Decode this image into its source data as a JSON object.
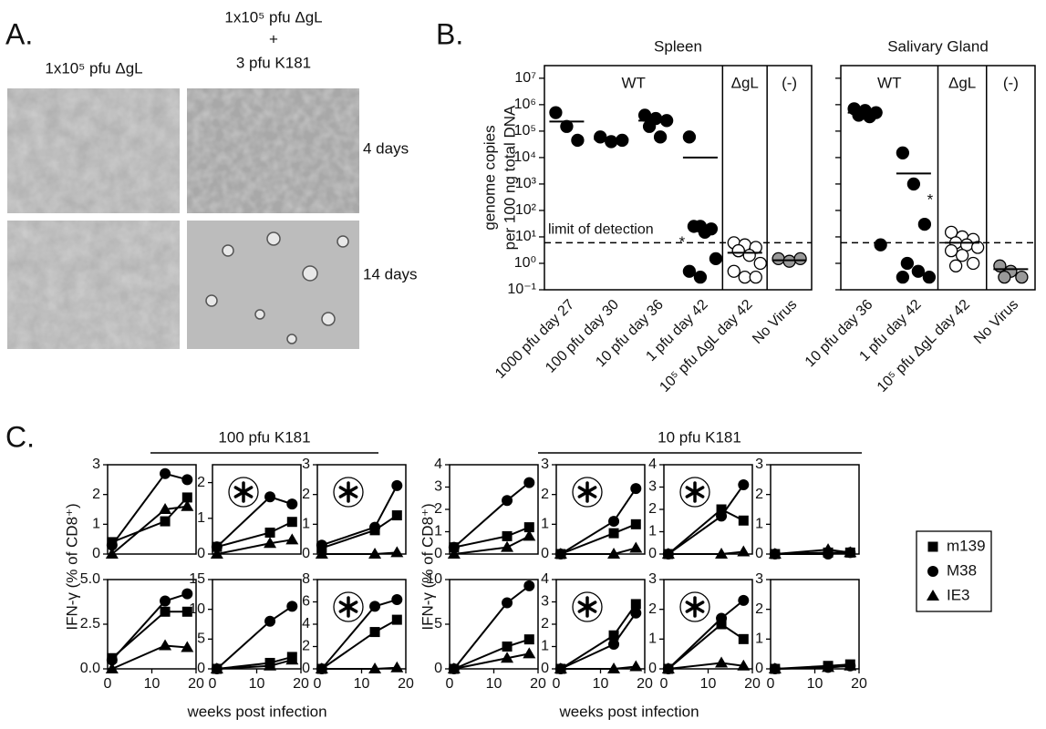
{
  "panel_a": {
    "label": "A.",
    "columns": [
      "1x10⁵ pfu ΔgL",
      [
        "1x10⁵ pfu ΔgL",
        "+",
        "3 pfu K181"
      ]
    ],
    "rows": [
      "4 days",
      "14 days"
    ]
  },
  "panel_b": {
    "label": "B.",
    "y_label": [
      "genome copies",
      "per 100 ng total DNA"
    ]
  },
  "panel_c": {
    "label": "C.",
    "color": "#000000",
    "groups": [
      {
        "title": "100 pfu K181",
        "x_label": "weeks post infection",
        "y_label": "IFN-γ (% of CD8⁺)"
      },
      {
        "title": "10 pfu K181",
        "x_label": "weeks post infection",
        "y_label": "IFN-γ (% of CD8⁺)"
      }
    ],
    "legend": [
      {
        "name": "m139",
        "marker": "square"
      },
      {
        "name": "M38",
        "marker": "circle"
      },
      {
        "name": "IE3",
        "marker": "triangle"
      }
    ]
  },
  "chart_data": [
    {
      "type": "dot",
      "title": "Spleen",
      "log_y": true,
      "ylim": [
        0.1,
        30000000
      ],
      "yticks": [
        {
          "value": 0.1,
          "label": "10⁻¹"
        },
        {
          "value": 1,
          "label": "10⁰"
        },
        {
          "value": 10,
          "label": "10¹"
        },
        {
          "value": 100,
          "label": "10²"
        },
        {
          "value": 1000,
          "label": "10³"
        },
        {
          "value": 10000,
          "label": "10⁴"
        },
        {
          "value": 100000,
          "label": "10⁵"
        },
        {
          "value": 1000000,
          "label": "10⁶"
        },
        {
          "value": 10000000,
          "label": "10⁷"
        }
      ],
      "detection_limit": {
        "label": "limit of detection",
        "value": 6
      },
      "sections": [
        {
          "label": "WT",
          "groups": [
            {
              "category": "1000 pfu day 27",
              "values": [
                500000,
                150000,
                45000
              ],
              "mean": 230000,
              "color": "#000000"
            },
            {
              "category": "100 pfu day 30",
              "values": [
                60000,
                40000,
                45000
              ],
              "mean": 50000,
              "color": "#000000"
            },
            {
              "category": "10 pfu day 36",
              "values": [
                400000,
                300000,
                250000,
                150000,
                60000
              ],
              "mean": 250000,
              "color": "#000000"
            },
            {
              "category": "1 pfu day 42",
              "values": [
                60000,
                25,
                20,
                25,
                15,
                1.5,
                0.5,
                0.3
              ],
              "mean": 10000,
              "color": "#000000",
              "note": "*"
            }
          ]
        },
        {
          "label": "ΔgL",
          "groups": [
            {
              "category": "10⁵ pfu ΔgL day 42",
              "values": [
                6,
                5,
                4,
                3,
                2,
                1,
                0.5,
                0.3,
                0.3,
                3
              ],
              "mean": 2.5,
              "color": "#ffffff"
            }
          ]
        },
        {
          "label": "(-)",
          "groups": [
            {
              "category": "No Virus",
              "values": [
                1.5,
                1.2,
                1.5
              ],
              "mean": 1.3,
              "color": "#999999"
            }
          ]
        }
      ]
    },
    {
      "type": "dot",
      "title": "Salivary Gland",
      "log_y": true,
      "ylim": [
        0.1,
        30000000
      ],
      "yticks": [
        0.1,
        1,
        10,
        100,
        1000,
        10000,
        100000,
        1000000,
        10000000
      ],
      "tick_labels": false,
      "detection_limit": {
        "value": 6
      },
      "sections": [
        {
          "label": "WT",
          "groups": [
            {
              "category": "10 pfu day 36",
              "values": [
                700000,
                600000,
                500000,
                400000,
                350000,
                5
              ],
              "mean": 500000,
              "color": "#000000"
            },
            {
              "category": "1 pfu day 42",
              "values": [
                15000,
                1000,
                30,
                1,
                0.5,
                0.3,
                0.3
              ],
              "mean": 2500,
              "color": "#000000",
              "note": "*"
            }
          ]
        },
        {
          "label": "ΔgL",
          "groups": [
            {
              "category": "10⁵ pfu ΔgL day 42",
              "values": [
                15,
                10,
                8,
                6,
                5,
                4,
                3,
                2,
                1,
                0.8
              ],
              "mean": 6,
              "color": "#ffffff"
            }
          ]
        },
        {
          "label": "(-)",
          "groups": [
            {
              "category": "No Virus",
              "values": [
                0.8,
                0.5,
                0.3,
                0.3
              ],
              "mean": 0.6,
              "color": "#999999"
            }
          ]
        }
      ]
    },
    {
      "type": "line",
      "x": [
        1,
        13,
        18
      ],
      "xlim": [
        0,
        20
      ],
      "ylim": [
        0,
        3
      ],
      "yticks": [
        0,
        1,
        2,
        3
      ],
      "star": false,
      "series": [
        {
          "marker": "square",
          "values": [
            0.4,
            1.1,
            1.9
          ]
        },
        {
          "marker": "circle",
          "values": [
            0.3,
            2.7,
            2.5
          ]
        },
        {
          "marker": "triangle",
          "values": [
            0,
            1.5,
            1.6
          ]
        }
      ]
    },
    {
      "type": "line",
      "x": [
        1,
        13,
        18
      ],
      "xlim": [
        0,
        20
      ],
      "ylim": [
        0,
        2.5
      ],
      "yticks": [
        0,
        1,
        2
      ],
      "star": true,
      "series": [
        {
          "marker": "square",
          "values": [
            0.2,
            0.6,
            0.9
          ]
        },
        {
          "marker": "circle",
          "values": [
            0.2,
            1.6,
            1.4
          ]
        },
        {
          "marker": "triangle",
          "values": [
            0,
            0.3,
            0.4
          ]
        }
      ]
    },
    {
      "type": "line",
      "x": [
        1,
        13,
        18
      ],
      "xlim": [
        0,
        20
      ],
      "ylim": [
        0,
        3
      ],
      "yticks": [
        0,
        1,
        2,
        3
      ],
      "star": true,
      "series": [
        {
          "marker": "square",
          "values": [
            0.2,
            0.8,
            1.3
          ]
        },
        {
          "marker": "circle",
          "values": [
            0.3,
            0.9,
            2.3
          ]
        },
        {
          "marker": "triangle",
          "values": [
            0,
            0,
            0.05
          ]
        }
      ]
    },
    {
      "type": "line",
      "x": [
        1,
        13,
        18
      ],
      "xlim": [
        0,
        20
      ],
      "xticks": [
        0,
        10,
        20
      ],
      "ylim": [
        0,
        5
      ],
      "yticks": [
        {
          "value": 0,
          "label": "0.0"
        },
        {
          "value": 2.5,
          "label": "2.5"
        },
        {
          "value": 5,
          "label": "5.0"
        }
      ],
      "star": false,
      "series": [
        {
          "marker": "square",
          "values": [
            0.6,
            3.2,
            3.2
          ]
        },
        {
          "marker": "circle",
          "values": [
            0.5,
            3.8,
            4.2
          ]
        },
        {
          "marker": "triangle",
          "values": [
            0,
            1.3,
            1.2
          ]
        }
      ]
    },
    {
      "type": "line",
      "x": [
        1,
        13,
        18
      ],
      "xlim": [
        0,
        20
      ],
      "xticks": [
        0,
        10,
        20
      ],
      "ylim": [
        0,
        15
      ],
      "yticks": [
        0,
        5,
        10,
        15
      ],
      "star": false,
      "series": [
        {
          "marker": "square",
          "values": [
            0,
            1,
            2
          ]
        },
        {
          "marker": "circle",
          "values": [
            0,
            8,
            10.5
          ]
        },
        {
          "marker": "triangle",
          "values": [
            0,
            0.5,
            1.5
          ]
        }
      ]
    },
    {
      "type": "line",
      "x": [
        1,
        13,
        18
      ],
      "xlim": [
        0,
        20
      ],
      "xticks": [
        0,
        10,
        20
      ],
      "ylim": [
        0,
        8
      ],
      "yticks": [
        0,
        2,
        4,
        6,
        8
      ],
      "star": true,
      "series": [
        {
          "marker": "square",
          "values": [
            0,
            3.3,
            4.4
          ]
        },
        {
          "marker": "circle",
          "values": [
            0,
            5.6,
            6.2
          ]
        },
        {
          "marker": "triangle",
          "values": [
            0,
            0,
            0.1
          ]
        }
      ]
    },
    {
      "type": "line",
      "x": [
        1,
        13,
        18
      ],
      "xlim": [
        0,
        20
      ],
      "ylim": [
        0,
        4
      ],
      "yticks": [
        0,
        1,
        2,
        3,
        4
      ],
      "star": false,
      "series": [
        {
          "marker": "square",
          "values": [
            0.3,
            0.8,
            1.2
          ]
        },
        {
          "marker": "circle",
          "values": [
            0.3,
            2.4,
            3.2
          ]
        },
        {
          "marker": "triangle",
          "values": [
            0,
            0.3,
            0.8
          ]
        }
      ]
    },
    {
      "type": "line",
      "x": [
        1,
        13,
        18
      ],
      "xlim": [
        0,
        20
      ],
      "ylim": [
        0,
        3
      ],
      "yticks": [
        0,
        1,
        2,
        3
      ],
      "star": true,
      "series": [
        {
          "marker": "square",
          "values": [
            0,
            0.7,
            1
          ]
        },
        {
          "marker": "circle",
          "values": [
            0,
            1.1,
            2.2
          ]
        },
        {
          "marker": "triangle",
          "values": [
            0,
            0,
            0.2
          ]
        }
      ]
    },
    {
      "type": "line",
      "x": [
        1,
        13,
        18
      ],
      "xlim": [
        0,
        20
      ],
      "ylim": [
        0,
        4
      ],
      "yticks": [
        0,
        1,
        2,
        3,
        4
      ],
      "star": true,
      "series": [
        {
          "marker": "square",
          "values": [
            0,
            2,
            1.5
          ]
        },
        {
          "marker": "circle",
          "values": [
            0,
            1.7,
            3.1
          ]
        },
        {
          "marker": "triangle",
          "values": [
            0,
            0,
            0.1
          ]
        }
      ]
    },
    {
      "type": "line",
      "x": [
        1,
        13,
        18
      ],
      "xlim": [
        0,
        20
      ],
      "ylim": [
        0,
        3
      ],
      "yticks": [
        0,
        1,
        2,
        3
      ],
      "star": false,
      "series": [
        {
          "marker": "square",
          "values": [
            0,
            0.05,
            0.05
          ]
        },
        {
          "marker": "circle",
          "values": [
            0,
            0,
            0.05
          ]
        },
        {
          "marker": "triangle",
          "values": [
            0,
            0.15,
            0.05
          ]
        }
      ]
    },
    {
      "type": "line",
      "x": [
        1,
        13,
        18
      ],
      "xlim": [
        0,
        20
      ],
      "xticks": [
        0,
        10,
        20
      ],
      "ylim": [
        0,
        10
      ],
      "yticks": [
        0,
        5,
        10
      ],
      "star": false,
      "series": [
        {
          "marker": "square",
          "values": [
            0,
            2.5,
            3.3
          ]
        },
        {
          "marker": "circle",
          "values": [
            0,
            7.4,
            9.3
          ]
        },
        {
          "marker": "triangle",
          "values": [
            0,
            1.2,
            1.7
          ]
        }
      ]
    },
    {
      "type": "line",
      "x": [
        1,
        13,
        18
      ],
      "xlim": [
        0,
        20
      ],
      "xticks": [
        0,
        10,
        20
      ],
      "ylim": [
        0,
        4
      ],
      "yticks": [
        0,
        1,
        2,
        3,
        4
      ],
      "star": true,
      "series": [
        {
          "marker": "square",
          "values": [
            0,
            1.5,
            2.9
          ]
        },
        {
          "marker": "circle",
          "values": [
            0,
            1.1,
            2.5
          ]
        },
        {
          "marker": "triangle",
          "values": [
            0,
            0,
            0.1
          ]
        }
      ]
    },
    {
      "type": "line",
      "x": [
        1,
        13,
        18
      ],
      "xlim": [
        0,
        20
      ],
      "xticks": [
        0,
        10,
        20
      ],
      "ylim": [
        0,
        3
      ],
      "yticks": [
        0,
        1,
        2,
        3
      ],
      "star": true,
      "series": [
        {
          "marker": "square",
          "values": [
            0,
            1.5,
            1
          ]
        },
        {
          "marker": "circle",
          "values": [
            0,
            1.7,
            2.3
          ]
        },
        {
          "marker": "triangle",
          "values": [
            0,
            0.2,
            0.1
          ]
        }
      ]
    },
    {
      "type": "line",
      "x": [
        1,
        13,
        18
      ],
      "xlim": [
        0,
        20
      ],
      "xticks": [
        0,
        10,
        20
      ],
      "ylim": [
        0,
        3
      ],
      "yticks": [
        0,
        1,
        2,
        3
      ],
      "star": false,
      "series": [
        {
          "marker": "square",
          "values": [
            0,
            0.1,
            0.15
          ]
        },
        {
          "marker": "circle",
          "values": [
            0,
            0.05,
            0.1
          ]
        },
        {
          "marker": "triangle",
          "values": [
            0,
            0.05,
            0.1
          ]
        }
      ]
    }
  ]
}
